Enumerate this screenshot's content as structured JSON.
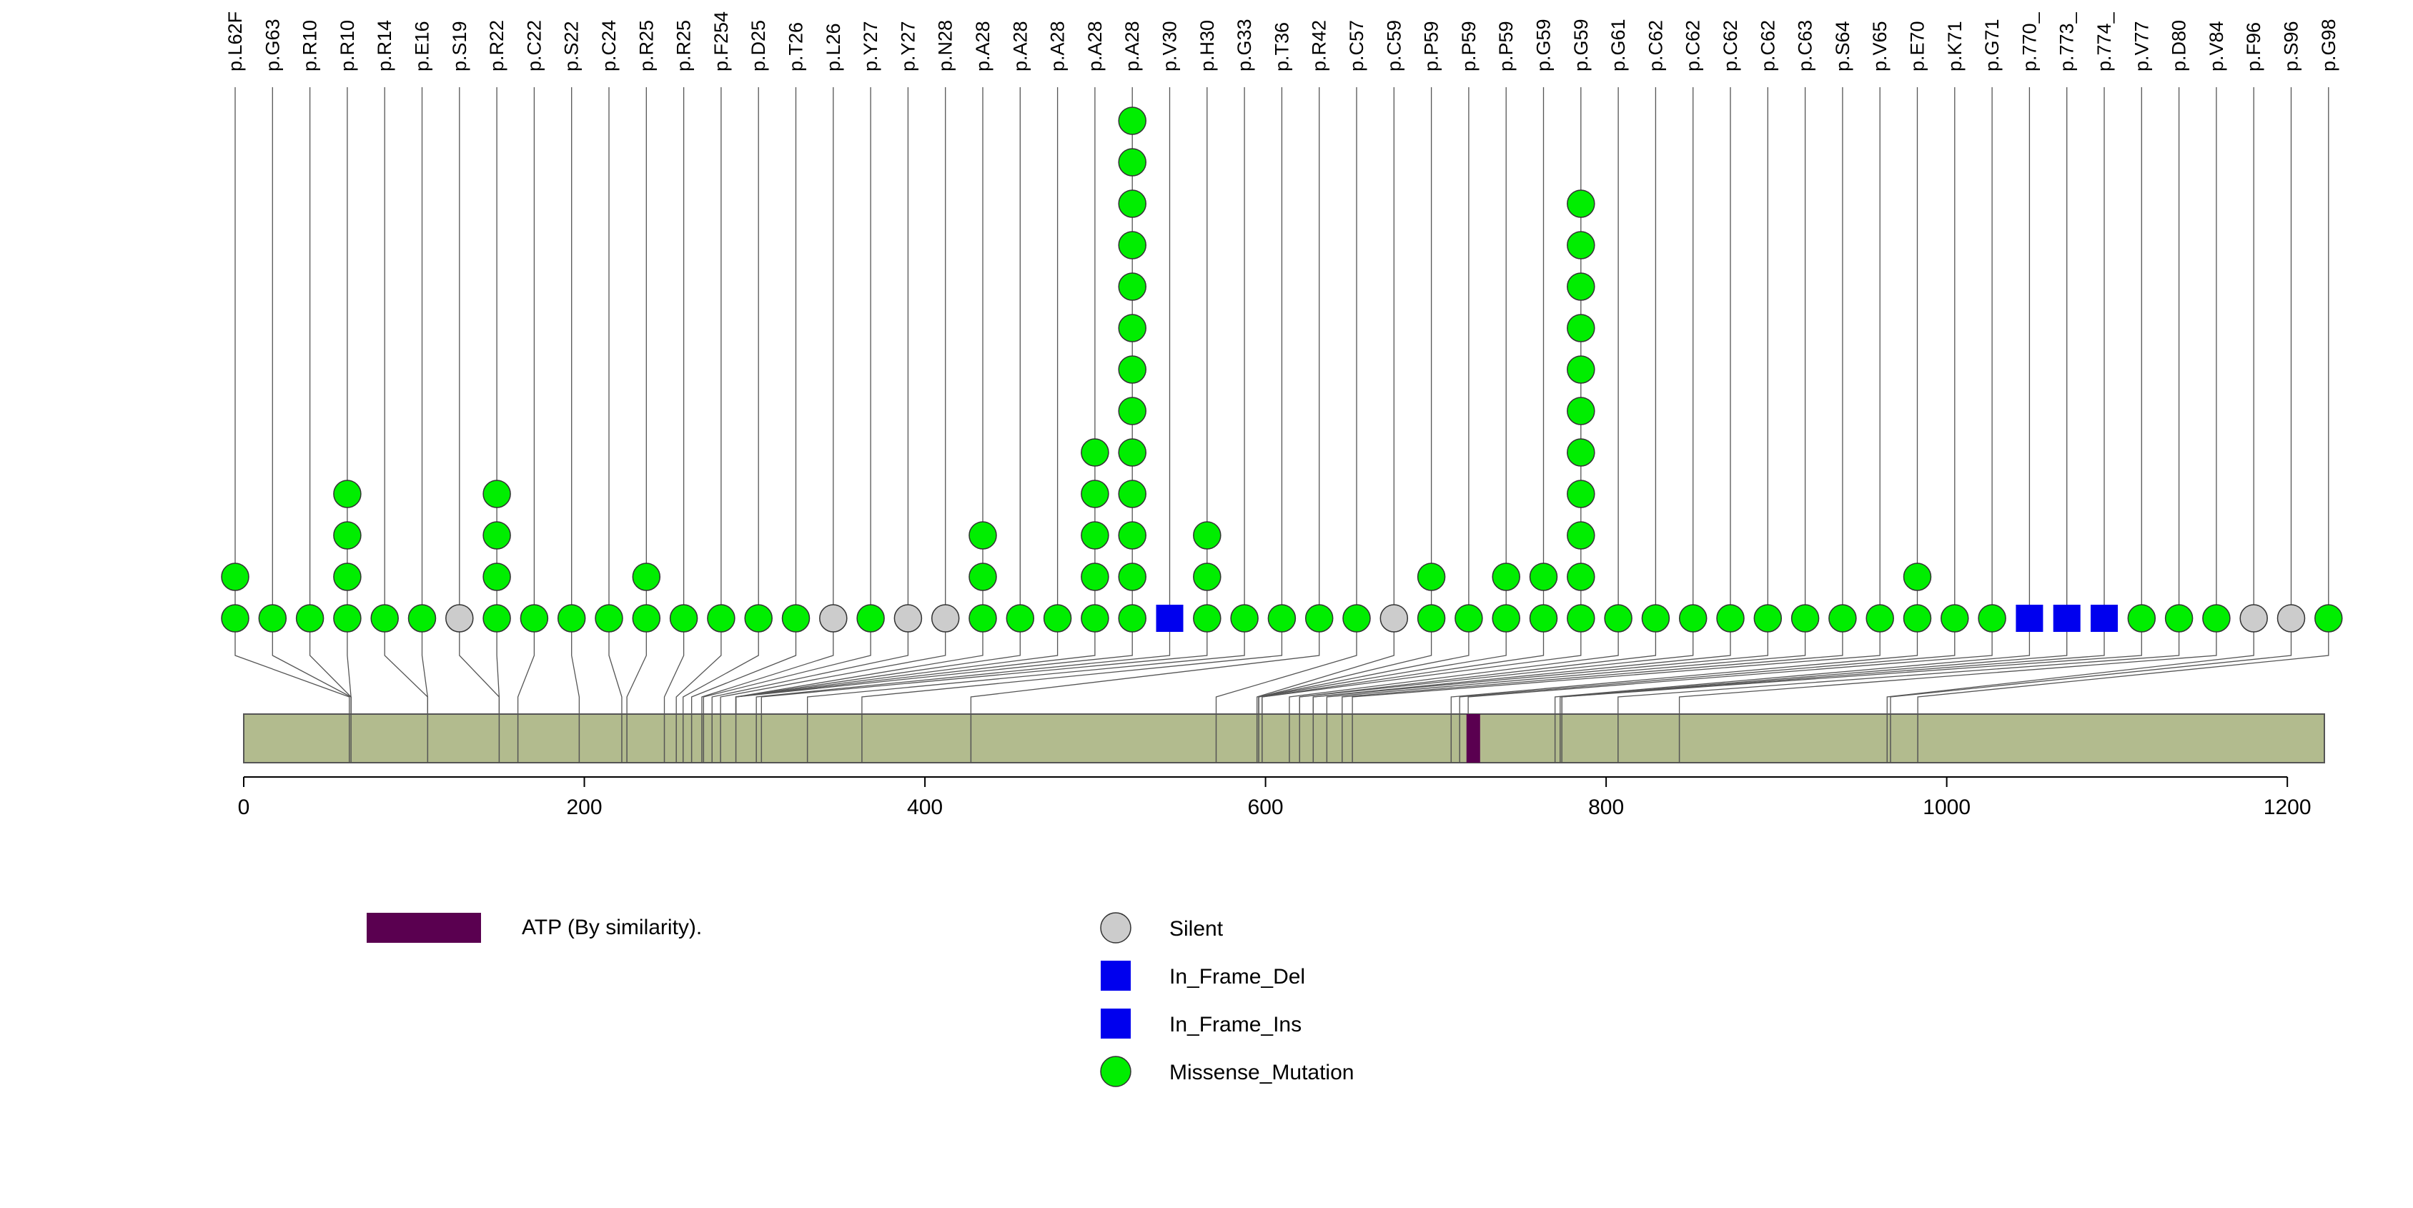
{
  "chart_data": {
    "type": "lollipop",
    "protein_length": 1210,
    "xlim": [
      0,
      1210
    ],
    "x_ticks": [
      "0",
      "200",
      "400",
      "600",
      "800",
      "1000",
      "1200"
    ],
    "domains": [
      {
        "name": "ATP (By similarity).",
        "start": 718,
        "end": 726,
        "color": "#5a0050"
      }
    ],
    "legend": {
      "domain_label": "ATP (By similarity).",
      "classes": [
        {
          "key": "Silent",
          "label": "Silent",
          "shape": "circle",
          "color": "#cccccc"
        },
        {
          "key": "In_Frame_Del",
          "label": "In_Frame_Del",
          "shape": "square",
          "color": "#0000ee"
        },
        {
          "key": "In_Frame_Ins",
          "label": "In_Frame_Ins",
          "shape": "square",
          "color": "#0000ee"
        },
        {
          "key": "Missense_Mutation",
          "label": "Missense_Mutation",
          "shape": "circle",
          "color": "#00ee00"
        }
      ]
    },
    "mutations": [
      {
        "label": "p.L62F",
        "position": 62,
        "count": 2,
        "type": "Missense_Mutation"
      },
      {
        "label": "p.G63",
        "position": 63,
        "count": 1,
        "type": "Missense_Mutation"
      },
      {
        "label": "p.R10",
        "position": 63,
        "count": 1,
        "type": "Missense_Mutation"
      },
      {
        "label": "p.R10",
        "position": 63,
        "count": 4,
        "type": "Missense_Mutation"
      },
      {
        "label": "p.R14",
        "position": 108,
        "count": 1,
        "type": "Missense_Mutation"
      },
      {
        "label": "p.E16",
        "position": 108,
        "count": 1,
        "type": "Missense_Mutation"
      },
      {
        "label": "p.S19",
        "position": 150,
        "count": 1,
        "type": "Silent"
      },
      {
        "label": "p.R22",
        "position": 150,
        "count": 4,
        "type": "Missense_Mutation"
      },
      {
        "label": "p.C22",
        "position": 161,
        "count": 1,
        "type": "Missense_Mutation"
      },
      {
        "label": "p.S22",
        "position": 197,
        "count": 1,
        "type": "Missense_Mutation"
      },
      {
        "label": "p.C24",
        "position": 222,
        "count": 1,
        "type": "Missense_Mutation"
      },
      {
        "label": "p.R25",
        "position": 225,
        "count": 2,
        "type": "Missense_Mutation"
      },
      {
        "label": "p.R25",
        "position": 247,
        "count": 1,
        "type": "Missense_Mutation"
      },
      {
        "label": "p.F254",
        "position": 254,
        "count": 1,
        "type": "Missense_Mutation"
      },
      {
        "label": "p.D25",
        "position": 258,
        "count": 1,
        "type": "Missense_Mutation"
      },
      {
        "label": "p.T26",
        "position": 263,
        "count": 1,
        "type": "Missense_Mutation"
      },
      {
        "label": "p.L26",
        "position": 269,
        "count": 1,
        "type": "Silent"
      },
      {
        "label": "p.Y27",
        "position": 270,
        "count": 1,
        "type": "Missense_Mutation"
      },
      {
        "label": "p.Y27",
        "position": 275,
        "count": 1,
        "type": "Silent"
      },
      {
        "label": "p.N28",
        "position": 280,
        "count": 1,
        "type": "Silent"
      },
      {
        "label": "p.A28",
        "position": 289,
        "count": 3,
        "type": "Missense_Mutation"
      },
      {
        "label": "p.A28",
        "position": 289,
        "count": 1,
        "type": "Missense_Mutation"
      },
      {
        "label": "p.A28",
        "position": 289,
        "count": 1,
        "type": "Missense_Mutation"
      },
      {
        "label": "p.A28",
        "position": 289,
        "count": 5,
        "type": "Missense_Mutation"
      },
      {
        "label": "p.A28",
        "position": 289,
        "count": 13,
        "type": "Missense_Mutation"
      },
      {
        "label": "p.V30",
        "position": 301,
        "count": 1,
        "type": "In_Frame_Del"
      },
      {
        "label": "p.H30",
        "position": 304,
        "count": 3,
        "type": "Missense_Mutation"
      },
      {
        "label": "p.G33",
        "position": 331,
        "count": 1,
        "type": "Missense_Mutation"
      },
      {
        "label": "p.T36",
        "position": 363,
        "count": 1,
        "type": "Missense_Mutation"
      },
      {
        "label": "p.R42",
        "position": 427,
        "count": 1,
        "type": "Missense_Mutation"
      },
      {
        "label": "p.C57",
        "position": 571,
        "count": 1,
        "type": "Missense_Mutation"
      },
      {
        "label": "p.C59",
        "position": 595,
        "count": 1,
        "type": "Silent"
      },
      {
        "label": "p.P59",
        "position": 596,
        "count": 2,
        "type": "Missense_Mutation"
      },
      {
        "label": "p.P59",
        "position": 596,
        "count": 1,
        "type": "Missense_Mutation"
      },
      {
        "label": "p.P59",
        "position": 596,
        "count": 2,
        "type": "Missense_Mutation"
      },
      {
        "label": "p.G59",
        "position": 598,
        "count": 2,
        "type": "Missense_Mutation"
      },
      {
        "label": "p.G59",
        "position": 598,
        "count": 11,
        "type": "Missense_Mutation"
      },
      {
        "label": "p.G61",
        "position": 614,
        "count": 1,
        "type": "Missense_Mutation"
      },
      {
        "label": "p.C62",
        "position": 620,
        "count": 1,
        "type": "Missense_Mutation"
      },
      {
        "label": "p.C62",
        "position": 620,
        "count": 1,
        "type": "Missense_Mutation"
      },
      {
        "label": "p.C62",
        "position": 628,
        "count": 1,
        "type": "Missense_Mutation"
      },
      {
        "label": "p.C62",
        "position": 628,
        "count": 1,
        "type": "Missense_Mutation"
      },
      {
        "label": "p.C63",
        "position": 636,
        "count": 1,
        "type": "Missense_Mutation"
      },
      {
        "label": "p.S64",
        "position": 645,
        "count": 1,
        "type": "Missense_Mutation"
      },
      {
        "label": "p.V65",
        "position": 651,
        "count": 1,
        "type": "Missense_Mutation"
      },
      {
        "label": "p.E70",
        "position": 709,
        "count": 2,
        "type": "Missense_Mutation"
      },
      {
        "label": "p.K71",
        "position": 714,
        "count": 1,
        "type": "Missense_Mutation"
      },
      {
        "label": "p.G71",
        "position": 719,
        "count": 1,
        "type": "Missense_Mutation"
      },
      {
        "label": "p.770_",
        "position": 770,
        "count": 1,
        "type": "In_Frame_Ins"
      },
      {
        "label": "p.773_",
        "position": 773,
        "count": 1,
        "type": "In_Frame_Ins"
      },
      {
        "label": "p.774_",
        "position": 774,
        "count": 1,
        "type": "In_Frame_Ins"
      },
      {
        "label": "p.V77",
        "position": 774,
        "count": 1,
        "type": "Missense_Mutation"
      },
      {
        "label": "p.D80",
        "position": 807,
        "count": 1,
        "type": "Missense_Mutation"
      },
      {
        "label": "p.V84",
        "position": 843,
        "count": 1,
        "type": "Missense_Mutation"
      },
      {
        "label": "p.F96",
        "position": 965,
        "count": 1,
        "type": "Silent"
      },
      {
        "label": "p.S96",
        "position": 967,
        "count": 1,
        "type": "Silent"
      },
      {
        "label": "p.G98",
        "position": 983,
        "count": 1,
        "type": "Missense_Mutation"
      }
    ]
  }
}
